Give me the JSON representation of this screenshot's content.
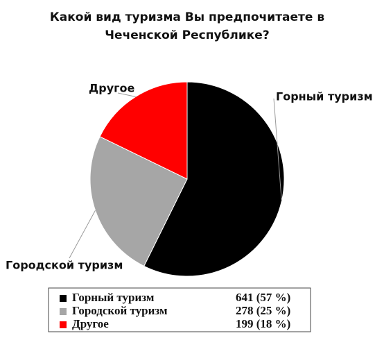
{
  "chart_data": {
    "type": "pie",
    "title": "Какой вид туризма Вы предпочитаете в Чеченской Республике?",
    "categories": [
      "Горный туризм",
      "Городской туризм",
      "Другое"
    ],
    "values": [
      641,
      278,
      199
    ],
    "value_labels": [
      "641 (57 %)",
      "278 (25 %)",
      "199 (18 %)"
    ],
    "colors": [
      "#000000",
      "#a6a6a6",
      "#ff0000"
    ]
  }
}
